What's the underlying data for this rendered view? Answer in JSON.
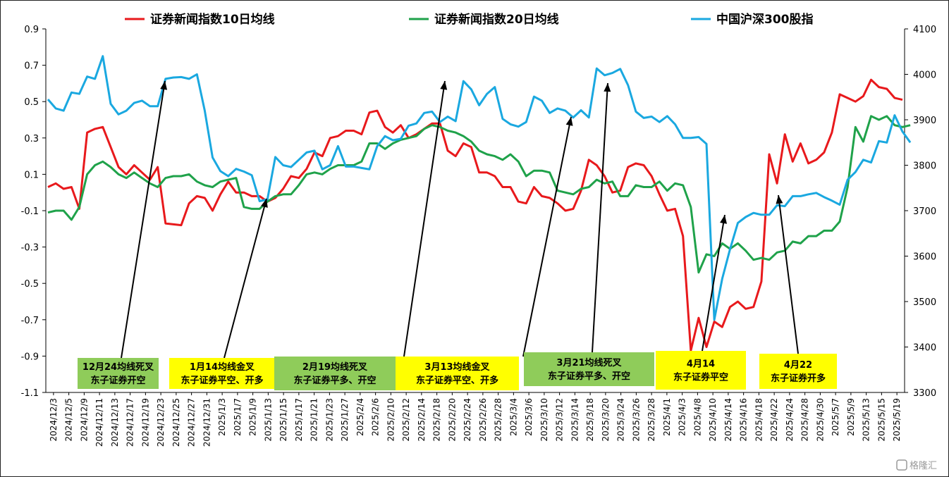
{
  "chart_data": {
    "type": "line",
    "legend_position": "top",
    "grid": false,
    "left_axis": {
      "ylim": [
        -1.1,
        0.9
      ],
      "ticks": [
        "0.9",
        "0.7",
        "0.5",
        "0.3",
        "0.1",
        "-0.1",
        "-0.3",
        "-0.5",
        "-0.7",
        "-0.9",
        "-1.1"
      ]
    },
    "right_axis": {
      "ylim": [
        3300,
        4100
      ],
      "ticks": [
        "4100",
        "4000",
        "3900",
        "3800",
        "3700",
        "3600",
        "3500",
        "3400",
        "3300"
      ]
    },
    "x_tick_labels": [
      "2024/12/3",
      "2024/12/5",
      "2024/12/9",
      "2024/12/11",
      "2024/12/13",
      "2024/12/17",
      "2024/12/19",
      "2024/12/23",
      "2024/12/25",
      "2024/12/27",
      "2024/12/31",
      "2025/1/3",
      "2025/1/7",
      "2025/1/9",
      "2025/1/13",
      "2025/1/15",
      "2025/1/17",
      "2025/1/21",
      "2025/1/23",
      "2025/1/27",
      "2025/2/4",
      "2025/2/6",
      "2025/2/10",
      "2025/2/12",
      "2025/2/14",
      "2025/2/18",
      "2025/2/20",
      "2025/2/24",
      "2025/2/26",
      "2025/2/28",
      "2025/3/4",
      "2025/3/6",
      "2025/3/10",
      "2025/3/12",
      "2025/3/14",
      "2025/3/18",
      "2025/3/20",
      "2025/3/24",
      "2025/3/26",
      "2025/3/28",
      "2025/4/1",
      "2025/4/3",
      "2025/4/8",
      "2025/4/10",
      "2025/4/14",
      "2025/4/16",
      "2025/4/18",
      "2025/4/22",
      "2025/4/24",
      "2025/4/28",
      "2025/4/30",
      "2025/5/7",
      "2025/5/9",
      "2025/5/13",
      "2025/5/15",
      "2025/5/19"
    ],
    "series": [
      {
        "name": "证券新闻指数10日均线",
        "axis": "left",
        "color": "#e8191c",
        "values": [
          0.03,
          0.05,
          0.02,
          0.03,
          -0.09,
          0.33,
          0.35,
          0.36,
          0.25,
          0.14,
          0.1,
          0.15,
          0.11,
          0.07,
          0.14,
          -0.17,
          -0.175,
          -0.18,
          -0.06,
          -0.02,
          -0.03,
          -0.1,
          -0.01,
          0.06,
          0.0,
          0.0,
          -0.02,
          -0.02,
          -0.05,
          -0.03,
          0.02,
          0.09,
          0.08,
          0.13,
          0.22,
          0.2,
          0.3,
          0.31,
          0.34,
          0.34,
          0.32,
          0.44,
          0.45,
          0.36,
          0.33,
          0.37,
          0.3,
          0.32,
          0.35,
          0.38,
          0.38,
          0.23,
          0.2,
          0.27,
          0.25,
          0.11,
          0.11,
          0.09,
          0.03,
          0.03,
          -0.05,
          -0.06,
          0.03,
          -0.02,
          -0.03,
          -0.06,
          -0.1,
          -0.09,
          0.01,
          0.18,
          0.15,
          0.09,
          0.0,
          0.01,
          0.14,
          0.16,
          0.15,
          0.09,
          -0.01,
          -0.1,
          -0.09,
          -0.24,
          -0.87,
          -0.69,
          -0.85,
          -0.71,
          -0.74,
          -0.63,
          -0.6,
          -0.64,
          -0.63,
          -0.49,
          0.21,
          0.05,
          0.32,
          0.17,
          0.27,
          0.16,
          0.18,
          0.22,
          0.33,
          0.54,
          0.52,
          0.5,
          0.53,
          0.62,
          0.58,
          0.57,
          0.52,
          0.51
        ]
      },
      {
        "name": "证券新闻指数20日均线",
        "axis": "left",
        "color": "#1fa24a",
        "values": [
          -0.11,
          -0.1,
          -0.1,
          -0.15,
          -0.08,
          0.1,
          0.15,
          0.17,
          0.14,
          0.1,
          0.08,
          0.11,
          0.08,
          0.05,
          0.03,
          0.08,
          0.09,
          0.09,
          0.1,
          0.06,
          0.04,
          0.03,
          0.06,
          0.07,
          0.08,
          -0.08,
          -0.09,
          -0.09,
          -0.05,
          -0.02,
          -0.01,
          -0.01,
          0.04,
          0.1,
          0.11,
          0.1,
          0.13,
          0.15,
          0.15,
          0.15,
          0.17,
          0.27,
          0.27,
          0.24,
          0.27,
          0.29,
          0.3,
          0.31,
          0.35,
          0.37,
          0.36,
          0.34,
          0.33,
          0.31,
          0.28,
          0.23,
          0.21,
          0.2,
          0.18,
          0.21,
          0.17,
          0.09,
          0.12,
          0.12,
          0.11,
          0.01,
          0.0,
          -0.01,
          0.02,
          0.03,
          0.07,
          0.05,
          0.06,
          -0.02,
          -0.02,
          0.04,
          0.03,
          0.03,
          0.06,
          0.01,
          0.05,
          0.04,
          -0.08,
          -0.44,
          -0.34,
          -0.35,
          -0.28,
          -0.31,
          -0.28,
          -0.32,
          -0.37,
          -0.36,
          -0.37,
          -0.33,
          -0.32,
          -0.27,
          -0.28,
          -0.24,
          -0.24,
          -0.21,
          -0.21,
          -0.16,
          0.03,
          0.36,
          0.28,
          0.42,
          0.4,
          0.42,
          0.37,
          0.36,
          0.37
        ]
      },
      {
        "name": "中国沪深300股指",
        "axis": "right",
        "color": "#1aa8e0",
        "values": [
          3945,
          3925,
          3920,
          3960,
          3957,
          3995,
          3990,
          4040,
          3935,
          3912,
          3920,
          3937,
          3942,
          3930,
          3930,
          3990,
          3993,
          3994,
          3990,
          4000,
          3920,
          3817,
          3787,
          3776,
          3792,
          3786,
          3778,
          3721,
          3725,
          3818,
          3800,
          3796,
          3812,
          3828,
          3832,
          3791,
          3800,
          3842,
          3797,
          3797,
          3794,
          3791,
          3842,
          3864,
          3855,
          3858,
          3887,
          3892,
          3915,
          3918,
          3895,
          3907,
          3897,
          3985,
          3967,
          3932,
          3957,
          3972,
          3902,
          3890,
          3885,
          3895,
          3951,
          3942,
          3915,
          3925,
          3920,
          3905,
          3921,
          3905,
          4013,
          3998,
          4003,
          4012,
          3976,
          3918,
          3904,
          3907,
          3895,
          3908,
          3890,
          3860,
          3860,
          3862,
          3847,
          3460,
          3550,
          3615,
          3673,
          3686,
          3695,
          3691,
          3691,
          3712,
          3710,
          3732,
          3732,
          3736,
          3739,
          3730,
          3722,
          3713,
          3768,
          3785,
          3812,
          3806,
          3853,
          3850,
          3910,
          3874,
          3850
        ]
      }
    ],
    "annotations": [
      {
        "date_label": "12月24均线死叉",
        "text": "东子证券开空"
      },
      {
        "date_label": "1月14均线金叉",
        "text": "东子证券平空、开多"
      },
      {
        "date_label": "2月19均线死叉",
        "text": "东子证券平多、开空"
      },
      {
        "date_label": "3月13均线金叉",
        "text": "东子证券平空、开多"
      },
      {
        "date_label": "3月21均线死叉",
        "text": "东子证券平多、开空"
      },
      {
        "date_label": "4月14",
        "text": "东子证券平空"
      },
      {
        "date_label": "4月22",
        "text": "东子证券开多"
      }
    ]
  },
  "colors": {
    "yellow_box": "#ffff00",
    "green_box": "#8fcc5a",
    "arrow": "#000000"
  },
  "watermark": {
    "text": "格隆汇"
  }
}
